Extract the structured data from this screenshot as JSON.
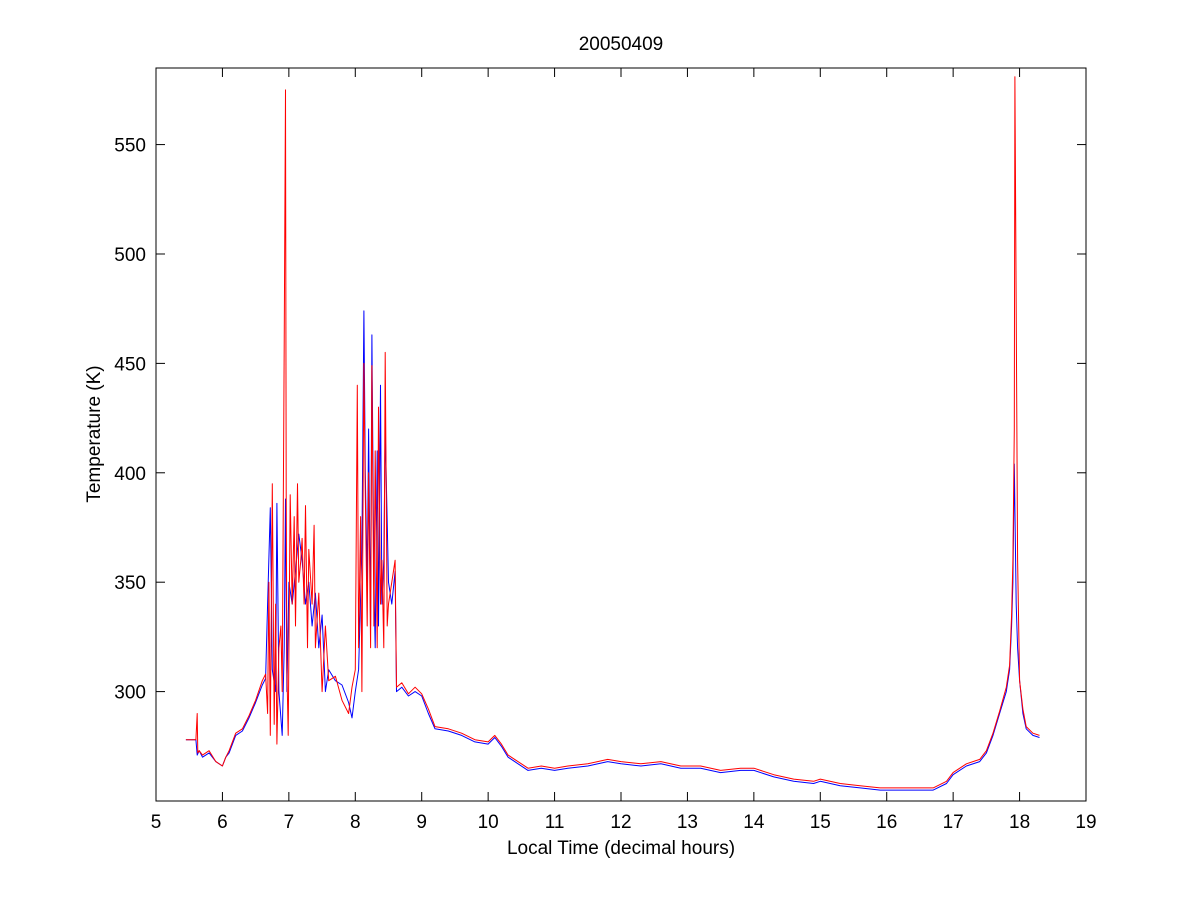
{
  "chart_data": {
    "type": "line",
    "title": "20050409",
    "xlabel": "Local Time (decimal hours)",
    "ylabel": "Temperature (K)",
    "xlim": [
      5,
      19
    ],
    "ylim": [
      250,
      585
    ],
    "xticks": [
      5,
      6,
      7,
      8,
      9,
      10,
      11,
      12,
      13,
      14,
      15,
      16,
      17,
      18,
      19
    ],
    "yticks": [
      300,
      350,
      400,
      450,
      500,
      550
    ],
    "grid": false,
    "legend": "none",
    "series": [
      {
        "color": "#0000ff",
        "x": [
          5.45,
          5.6,
          5.62,
          5.65,
          5.7,
          5.8,
          5.9,
          6.0,
          6.05,
          6.1,
          6.2,
          6.3,
          6.4,
          6.5,
          6.6,
          6.65,
          6.68,
          6.72,
          6.75,
          6.8,
          6.82,
          6.85,
          6.9,
          6.93,
          6.95,
          6.97,
          7.0,
          7.05,
          7.1,
          7.15,
          7.2,
          7.25,
          7.3,
          7.35,
          7.4,
          7.45,
          7.5,
          7.55,
          7.6,
          7.7,
          7.8,
          7.9,
          7.95,
          8.0,
          8.05,
          8.1,
          8.13,
          8.15,
          8.18,
          8.2,
          8.23,
          8.25,
          8.28,
          8.3,
          8.33,
          8.35,
          8.38,
          8.4,
          8.43,
          8.45,
          8.5,
          8.55,
          8.6,
          8.62,
          8.7,
          8.8,
          8.9,
          9.0,
          9.1,
          9.2,
          9.4,
          9.6,
          9.8,
          10.0,
          10.1,
          10.2,
          10.3,
          10.4,
          10.6,
          10.8,
          11.0,
          11.2,
          11.5,
          11.8,
          12.0,
          12.3,
          12.6,
          12.9,
          13.2,
          13.5,
          13.8,
          14.0,
          14.3,
          14.6,
          14.9,
          15.0,
          15.3,
          15.6,
          15.9,
          16.2,
          16.5,
          16.7,
          16.9,
          17.0,
          17.2,
          17.4,
          17.5,
          17.6,
          17.7,
          17.8,
          17.85,
          17.88,
          17.9,
          17.92,
          17.95,
          17.97,
          18.0,
          18.05,
          18.1,
          18.2,
          18.3
        ],
        "y": [
          278,
          278,
          271,
          273,
          270,
          272,
          268,
          266,
          270,
          272,
          280,
          282,
          288,
          295,
          303,
          306,
          340,
          384,
          310,
          300,
          386,
          300,
          280,
          320,
          388,
          300,
          350,
          340,
          355,
          372,
          360,
          340,
          350,
          330,
          345,
          320,
          335,
          300,
          310,
          305,
          303,
          295,
          288,
          300,
          310,
          365,
          474,
          400,
          350,
          420,
          330,
          463,
          350,
          320,
          410,
          330,
          440,
          340,
          360,
          420,
          350,
          340,
          355,
          300,
          302,
          298,
          300,
          298,
          290,
          283,
          282,
          280,
          277,
          276,
          279,
          275,
          270,
          268,
          264,
          265,
          264,
          265,
          266,
          268,
          267,
          266,
          267,
          265,
          265,
          263,
          264,
          264,
          261,
          259,
          258,
          259,
          257,
          256,
          255,
          255,
          255,
          255,
          258,
          262,
          266,
          268,
          272,
          280,
          290,
          300,
          310,
          330,
          350,
          404,
          340,
          320,
          305,
          290,
          283,
          280,
          279
        ]
      },
      {
        "color": "#ff0000",
        "x": [
          5.45,
          5.6,
          5.62,
          5.63,
          5.65,
          5.7,
          5.8,
          5.9,
          6.0,
          6.05,
          6.1,
          6.2,
          6.3,
          6.4,
          6.5,
          6.6,
          6.65,
          6.68,
          6.7,
          6.72,
          6.75,
          6.78,
          6.8,
          6.82,
          6.85,
          6.88,
          6.9,
          6.93,
          6.95,
          6.96,
          6.97,
          6.99,
          7.02,
          7.05,
          7.08,
          7.1,
          7.13,
          7.15,
          7.18,
          7.2,
          7.23,
          7.25,
          7.28,
          7.3,
          7.33,
          7.35,
          7.38,
          7.4,
          7.45,
          7.5,
          7.55,
          7.6,
          7.7,
          7.8,
          7.9,
          7.95,
          8.0,
          8.03,
          8.05,
          8.08,
          8.1,
          8.13,
          8.15,
          8.18,
          8.2,
          8.23,
          8.25,
          8.28,
          8.3,
          8.33,
          8.35,
          8.38,
          8.4,
          8.43,
          8.45,
          8.48,
          8.5,
          8.55,
          8.6,
          8.62,
          8.7,
          8.8,
          8.9,
          9.0,
          9.1,
          9.2,
          9.4,
          9.6,
          9.8,
          10.0,
          10.1,
          10.2,
          10.3,
          10.4,
          10.6,
          10.8,
          11.0,
          11.2,
          11.5,
          11.8,
          12.0,
          12.3,
          12.6,
          12.9,
          13.2,
          13.5,
          13.8,
          14.0,
          14.3,
          14.6,
          14.9,
          15.0,
          15.3,
          15.6,
          15.9,
          16.2,
          16.5,
          16.7,
          16.9,
          17.0,
          17.2,
          17.4,
          17.5,
          17.6,
          17.7,
          17.8,
          17.85,
          17.88,
          17.9,
          17.92,
          17.93,
          17.95,
          17.97,
          18.0,
          18.05,
          18.1,
          18.2,
          18.3
        ],
        "y": [
          278,
          278,
          290,
          272,
          273,
          271,
          273,
          268,
          266,
          270,
          273,
          281,
          283,
          289,
          296,
          305,
          308,
          290,
          350,
          280,
          395,
          285,
          340,
          276,
          320,
          330,
          300,
          458,
          575,
          390,
          310,
          280,
          390,
          340,
          380,
          330,
          395,
          350,
          360,
          370,
          340,
          385,
          320,
          365,
          350,
          340,
          376,
          320,
          345,
          300,
          330,
          305,
          307,
          296,
          290,
          302,
          310,
          440,
          320,
          380,
          300,
          450,
          390,
          330,
          400,
          320,
          449,
          330,
          410,
          320,
          430,
          340,
          360,
          320,
          455,
          330,
          340,
          350,
          360,
          302,
          304,
          299,
          302,
          299,
          292,
          284,
          283,
          281,
          278,
          277,
          280,
          276,
          271,
          269,
          265,
          266,
          265,
          266,
          267,
          269,
          268,
          267,
          268,
          266,
          266,
          264,
          265,
          265,
          262,
          260,
          259,
          260,
          258,
          257,
          256,
          256,
          256,
          256,
          259,
          263,
          267,
          269,
          273,
          281,
          291,
          302,
          312,
          335,
          360,
          420,
          581,
          475,
          360,
          305,
          292,
          284,
          281,
          280
        ]
      }
    ]
  }
}
